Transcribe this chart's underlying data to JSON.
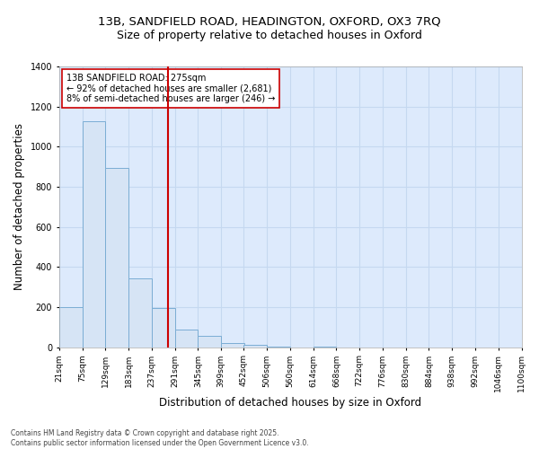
{
  "title_line1": "13B, SANDFIELD ROAD, HEADINGTON, OXFORD, OX3 7RQ",
  "title_line2": "Size of property relative to detached houses in Oxford",
  "xlabel": "Distribution of detached houses by size in Oxford",
  "ylabel": "Number of detached properties",
  "footer_line1": "Contains HM Land Registry data © Crown copyright and database right 2025.",
  "footer_line2": "Contains public sector information licensed under the Open Government Licence v3.0.",
  "annotation_line1": "13B SANDFIELD ROAD: 275sqm",
  "annotation_line2": "← 92% of detached houses are smaller (2,681)",
  "annotation_line3": "8% of semi-detached houses are larger (246) →",
  "bar_edge_color": "#7badd4",
  "bar_face_color": "#d6e4f5",
  "grid_color": "#c5d8f0",
  "bg_color": "#ddeafc",
  "red_line_color": "#cc0000",
  "red_line_x": 275,
  "ylim": [
    0,
    1400
  ],
  "bins": [
    21,
    75,
    129,
    183,
    237,
    291,
    345,
    399,
    452,
    506,
    560,
    614,
    668,
    722,
    776,
    830,
    884,
    938,
    992,
    1046,
    1100
  ],
  "counts": [
    200,
    1125,
    893,
    345,
    197,
    90,
    55,
    20,
    10,
    5,
    0,
    5,
    0,
    0,
    0,
    0,
    0,
    0,
    0,
    0
  ],
  "tick_labels": [
    "21sqm",
    "75sqm",
    "129sqm",
    "183sqm",
    "237sqm",
    "291sqm",
    "345sqm",
    "399sqm",
    "452sqm",
    "506sqm",
    "560sqm",
    "614sqm",
    "668sqm",
    "722sqm",
    "776sqm",
    "830sqm",
    "884sqm",
    "938sqm",
    "992sqm",
    "1046sqm",
    "1100sqm"
  ],
  "title_fontsize": 9.5,
  "subtitle_fontsize": 9,
  "axis_label_fontsize": 8.5,
  "tick_fontsize": 6.5,
  "annotation_fontsize": 7,
  "footer_fontsize": 5.5
}
